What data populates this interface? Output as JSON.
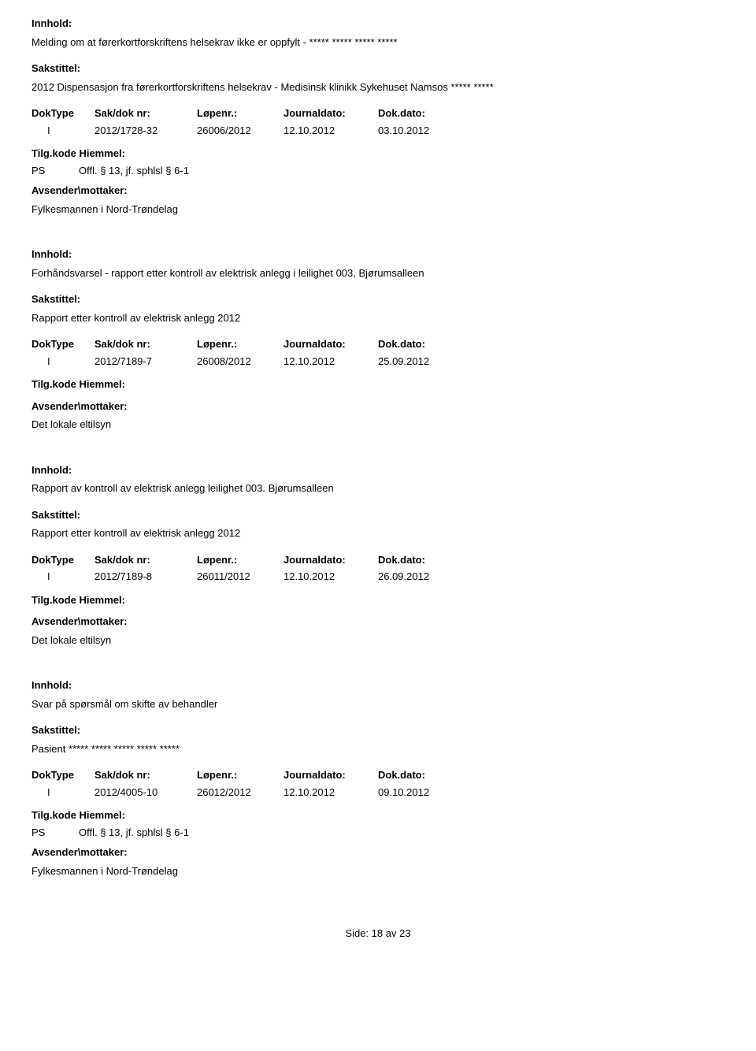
{
  "labels": {
    "innhold": "Innhold:",
    "sakstittel": "Sakstittel:",
    "doktype": "DokType",
    "sakdoknr": "Sak/dok nr:",
    "lopenr": "Løpenr.:",
    "journaldato": "Journaldato:",
    "dokdato": "Dok.dato:",
    "tilgkode": "Tilg.kode",
    "hiemmel": "Hiemmel:",
    "avsender": "Avsender\\mottaker:"
  },
  "entries": [
    {
      "innhold": "Melding om at førerkortforskriftens helsekrav ikke er oppfylt - ***** ***** ***** *****",
      "sakstittel": "2012 Dispensasjon fra førerkortforskriftens helsekrav - Medisinsk klinikk Sykehuset Namsos ***** *****",
      "doktype": "I",
      "sakdoknr": "2012/1728-32",
      "lopenr": "26006/2012",
      "journaldato": "12.10.2012",
      "dokdato": "03.10.2012",
      "tilgcode": "PS",
      "hiemmel": "Offl. § 13, jf. sphlsl § 6-1",
      "avsender": "Fylkesmannen i Nord-Trøndelag"
    },
    {
      "innhold": "Forhåndsvarsel - rapport etter kontroll av elektrisk anlegg i leilighet 003, Bjørumsalleen",
      "sakstittel": "Rapport etter kontroll av elektrisk anlegg 2012",
      "doktype": "I",
      "sakdoknr": "2012/7189-7",
      "lopenr": "26008/2012",
      "journaldato": "12.10.2012",
      "dokdato": "25.09.2012",
      "tilgcode": "",
      "hiemmel": "",
      "avsender": "Det lokale eltilsyn"
    },
    {
      "innhold": "Rapport av kontroll av elektrisk anlegg leilighet 003. Bjørumsalleen",
      "sakstittel": "Rapport etter kontroll av elektrisk anlegg 2012",
      "doktype": "I",
      "sakdoknr": "2012/7189-8",
      "lopenr": "26011/2012",
      "journaldato": "12.10.2012",
      "dokdato": "26.09.2012",
      "tilgcode": "",
      "hiemmel": "",
      "avsender": "Det lokale eltilsyn"
    },
    {
      "innhold": "Svar på spørsmål om skifte av behandler",
      "sakstittel": "Pasient ***** ***** ***** ***** *****",
      "doktype": "I",
      "sakdoknr": "2012/4005-10",
      "lopenr": "26012/2012",
      "journaldato": "12.10.2012",
      "dokdato": "09.10.2012",
      "tilgcode": "PS",
      "hiemmel": "Offl. § 13, jf. sphlsl § 6-1",
      "avsender": "Fylkesmannen i Nord-Trøndelag"
    }
  ],
  "footer": {
    "side_label": "Side:",
    "page_current": "18",
    "page_sep": "av",
    "page_total": "23"
  }
}
